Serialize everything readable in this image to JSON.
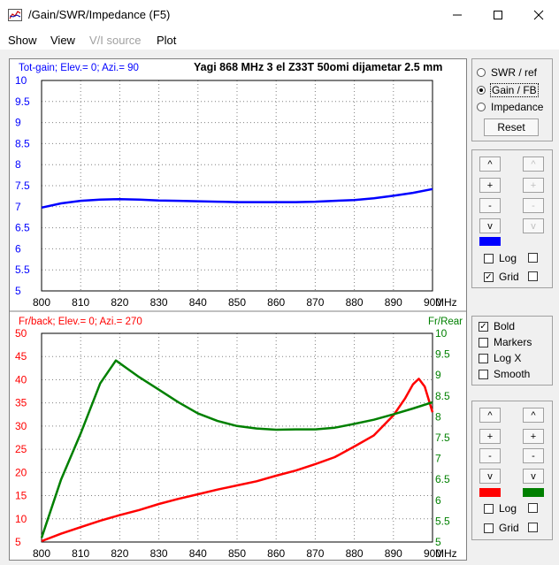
{
  "window": {
    "title": "/Gain/SWR/Impedance (F5)"
  },
  "menu": [
    {
      "label": "Show",
      "enabled": true
    },
    {
      "label": "View",
      "enabled": true
    },
    {
      "label": "V/I source",
      "enabled": false
    },
    {
      "label": "Plot",
      "enabled": true
    }
  ],
  "colors": {
    "gain": "#0000ff",
    "fb": "#ff0000",
    "rear": "#008000"
  },
  "top_chart": {
    "header_left": "Tot-gain; Elev.= 0; Azi.= 90",
    "header_right": "Yagi 868 MHz 3 el Z33T 50omi dijametar 2.5 mm",
    "x_unit": "MHz"
  },
  "bottom_chart": {
    "header_left": "Fr/back; Elev.= 0; Azi.= 270",
    "header_right": "Fr/Rear",
    "x_unit": "MHz"
  },
  "chart_data": [
    {
      "type": "line",
      "title": "Yagi 868 MHz 3 el Z33T 50omi dijametar 2.5 mm",
      "xlabel": "MHz",
      "ylabel": "Tot-gain; Elev.= 0; Azi.= 90",
      "xlim": [
        800,
        900
      ],
      "ylim": [
        5,
        10
      ],
      "x_ticks": [
        "800",
        "810",
        "820",
        "830",
        "840",
        "850",
        "860",
        "870",
        "880",
        "890",
        "900"
      ],
      "y_ticks": [
        "5",
        "5.5",
        "6",
        "6.5",
        "7",
        "7.5",
        "8",
        "8.5",
        "9",
        "9.5",
        "10"
      ],
      "grid": true,
      "series": [
        {
          "color": "#0000ff",
          "x": [
            800,
            805,
            810,
            815,
            820,
            825,
            830,
            835,
            840,
            845,
            850,
            855,
            860,
            865,
            870,
            875,
            880,
            885,
            890,
            895,
            900
          ],
          "values": [
            6.98,
            7.08,
            7.14,
            7.17,
            7.18,
            7.17,
            7.15,
            7.14,
            7.13,
            7.12,
            7.11,
            7.11,
            7.11,
            7.11,
            7.12,
            7.14,
            7.16,
            7.2,
            7.26,
            7.33,
            7.42
          ]
        }
      ]
    },
    {
      "type": "line",
      "xlabel": "MHz",
      "ylabel": "Fr/back; Elev.= 0; Azi.= 270",
      "y2label": "Fr/Rear",
      "xlim": [
        800,
        900
      ],
      "ylim": [
        5,
        50
      ],
      "y2lim": [
        5,
        10
      ],
      "x_ticks": [
        "800",
        "810",
        "820",
        "830",
        "840",
        "850",
        "860",
        "870",
        "880",
        "890",
        "900"
      ],
      "y_ticks": [
        "5",
        "10",
        "15",
        "20",
        "25",
        "30",
        "35",
        "40",
        "45",
        "50"
      ],
      "y2_ticks": [
        "5",
        "5.5",
        "6",
        "6.5",
        "7",
        "7.5",
        "8",
        "8.5",
        "9",
        "9.5",
        "10"
      ],
      "grid": true,
      "series": [
        {
          "color": "#ff0000",
          "axis": "left",
          "x": [
            800,
            805,
            810,
            815,
            820,
            825,
            830,
            835,
            840,
            845,
            850,
            855,
            860,
            865,
            870,
            875,
            880,
            885,
            890,
            893,
            895,
            896.5,
            898,
            900
          ],
          "values": [
            5.2,
            6.8,
            8.2,
            9.6,
            10.8,
            11.9,
            13.2,
            14.3,
            15.3,
            16.3,
            17.2,
            18.1,
            19.3,
            20.4,
            21.8,
            23.3,
            25.6,
            28.0,
            32.3,
            36.0,
            39.0,
            40.2,
            38.5,
            33.0
          ]
        },
        {
          "color": "#008000",
          "axis": "right",
          "x": [
            800,
            805,
            810,
            815,
            819,
            822,
            825,
            830,
            835,
            840,
            845,
            850,
            855,
            860,
            865,
            870,
            875,
            880,
            885,
            890,
            895,
            900
          ],
          "values": [
            5.1,
            6.5,
            7.6,
            8.8,
            9.35,
            9.15,
            8.95,
            8.65,
            8.35,
            8.08,
            7.9,
            7.78,
            7.72,
            7.69,
            7.7,
            7.7,
            7.74,
            7.83,
            7.93,
            8.06,
            8.2,
            8.35
          ]
        }
      ]
    }
  ],
  "side_top": {
    "radios": [
      {
        "label": "SWR / ref",
        "checked": false
      },
      {
        "label": "Gain / FB",
        "checked": true
      },
      {
        "label": "Impedance",
        "checked": false
      }
    ],
    "reset_label": "Reset"
  },
  "side_mid": {
    "col1": [
      "^",
      "+",
      "-",
      "v"
    ],
    "col2": [
      "^",
      "+",
      "-",
      "v"
    ],
    "log_label": "Log",
    "grid_label": "Grid",
    "log_checked": false,
    "grid_checked": true
  },
  "options": [
    {
      "label": "Bold",
      "checked": true
    },
    {
      "label": "Markers",
      "checked": false
    },
    {
      "label": "Log X",
      "checked": false
    },
    {
      "label": "Smooth",
      "checked": false
    }
  ],
  "side_bottom": {
    "col1": [
      "^",
      "+",
      "-",
      "v"
    ],
    "col2": [
      "^",
      "+",
      "-",
      "v"
    ],
    "log_label": "Log",
    "grid_label": "Grid",
    "log_checked": false,
    "grid_checked": false
  }
}
